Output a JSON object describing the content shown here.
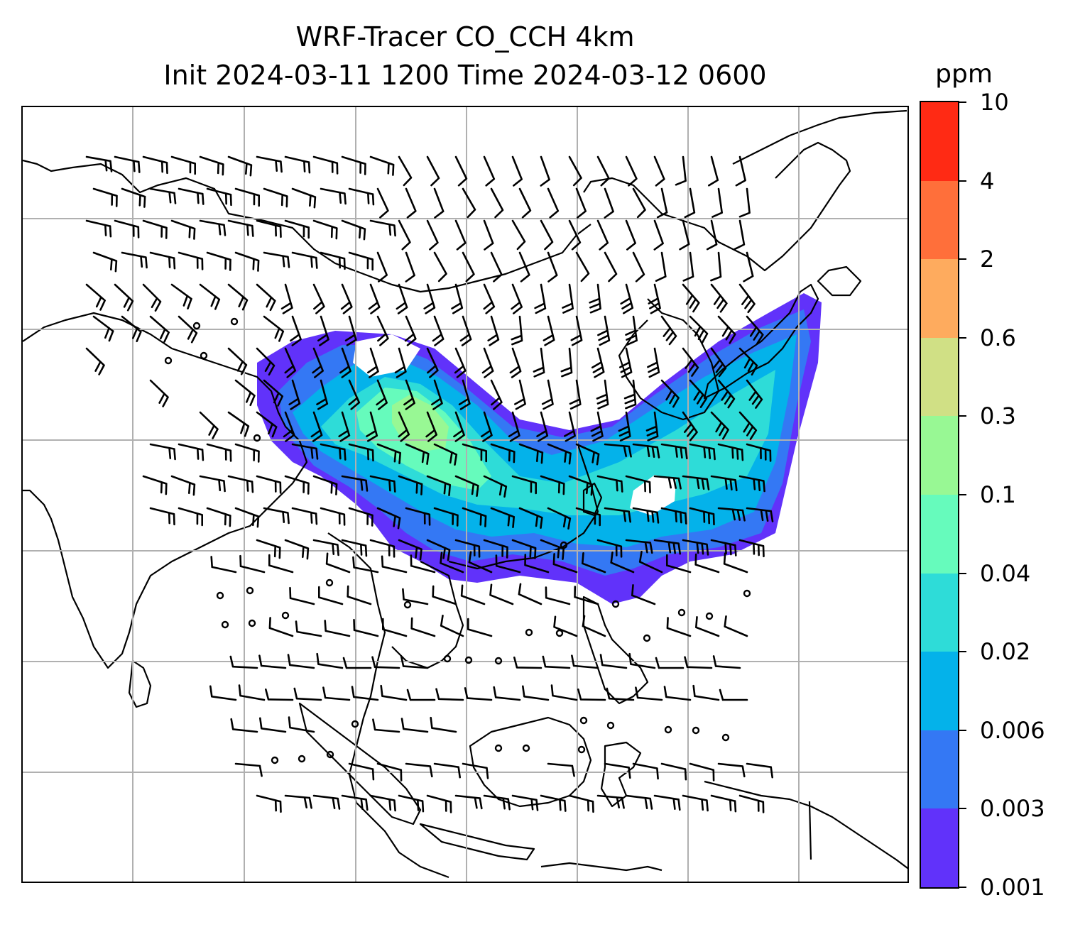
{
  "title": {
    "line1": "WRF-Tracer CO_CCH 4km",
    "line2": "Init 2024-03-11 1200 Time 2024-03-12 0600"
  },
  "colorbar": {
    "unit": "ppm",
    "levels": [
      "10",
      "4",
      "2",
      "0.6",
      "0.3",
      "0.1",
      "0.04",
      "0.02",
      "0.006",
      "0.003",
      "0.001"
    ],
    "colors": [
      "#ff2a14",
      "#ff6f3a",
      "#feab5e",
      "#d0e085",
      "#98f894",
      "#66fbbc",
      "#2edcd8",
      "#04b2ea",
      "#3478f4",
      "#6132fa"
    ]
  },
  "map": {
    "gridlines": true,
    "grid_color": "#b0b0b0",
    "coastline_color": "#000000",
    "barb_color": "#000000"
  }
}
